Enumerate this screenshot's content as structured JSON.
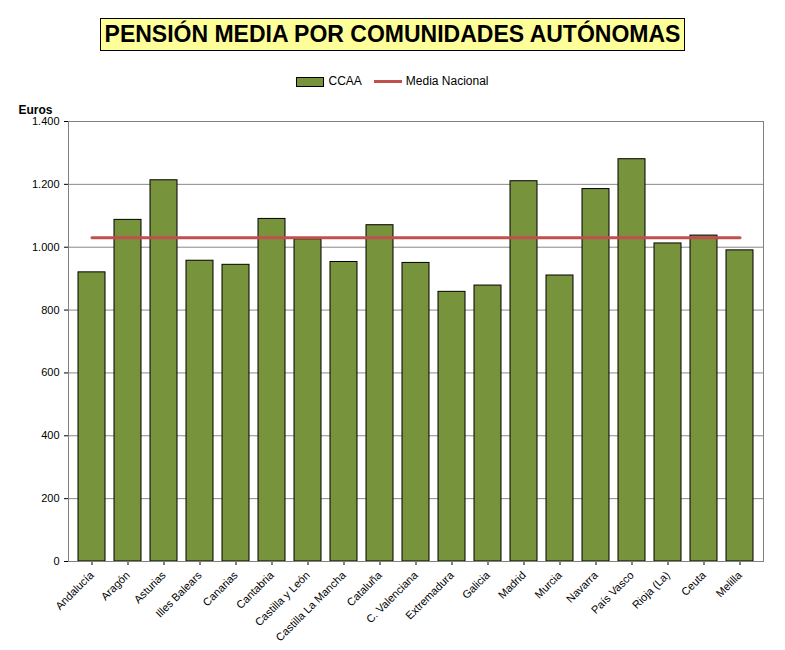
{
  "chart_data": {
    "type": "bar",
    "title": "PENSIÓN MEDIA POR COMUNIDADES AUTÓNOMAS",
    "y_label": "Euros",
    "categories": [
      "Andalucía",
      "Aragón",
      "Asturias",
      "Illes Balears",
      "Canarias",
      "Cantabria",
      "Castilla y León",
      "Castilla La Mancha",
      "Cataluña",
      "C. Valenciana",
      "Extremadura",
      "Galicia",
      "Madrid",
      "Murcia",
      "Navarra",
      "País Vasco",
      "Rioja (La)",
      "Ceuta",
      "Melilla"
    ],
    "series": [
      {
        "name": "CCAA",
        "type": "bar",
        "color": "#77933c",
        "values": [
          920,
          1087,
          1213,
          957,
          944,
          1090,
          1025,
          953,
          1070,
          950,
          858,
          878,
          1210,
          910,
          1185,
          1280,
          1012,
          1037,
          990
        ]
      },
      {
        "name": "Media Nacional",
        "type": "line",
        "color": "#c0504d",
        "values": [
          1030,
          1030,
          1030,
          1030,
          1030,
          1030,
          1030,
          1030,
          1030,
          1030,
          1030,
          1030,
          1030,
          1030,
          1030,
          1030,
          1030,
          1030,
          1030
        ]
      }
    ],
    "ylim": [
      0,
      1400
    ],
    "yticks": [
      0,
      200,
      400,
      600,
      800,
      {
        "value": 1000,
        "label": "1.000"
      },
      {
        "value": 1200,
        "label": "1.200"
      },
      {
        "value": 1400,
        "label": "1.400"
      }
    ],
    "grid": true,
    "legend": "top"
  }
}
